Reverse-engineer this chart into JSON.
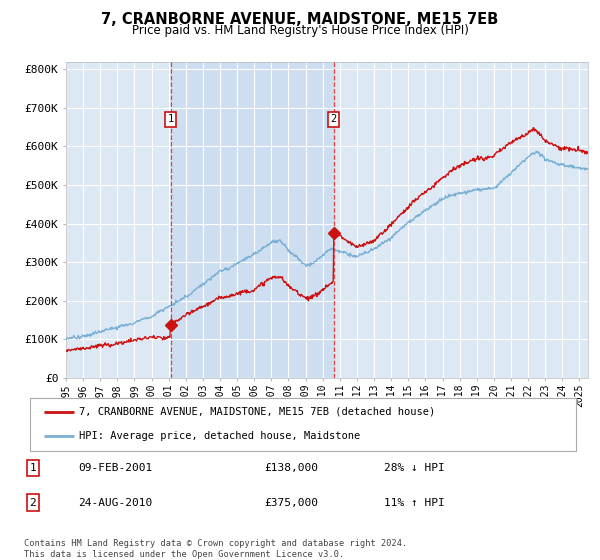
{
  "title": "7, CRANBORNE AVENUE, MAIDSTONE, ME15 7EB",
  "subtitle": "Price paid vs. HM Land Registry's House Price Index (HPI)",
  "ylabel_ticks": [
    "£0",
    "£100K",
    "£200K",
    "£300K",
    "£400K",
    "£500K",
    "£600K",
    "£700K",
    "£800K"
  ],
  "ylim": [
    0,
    820000
  ],
  "xlim_start": 1995.0,
  "xlim_end": 2025.5,
  "background_color": "#ffffff",
  "plot_bg_color": "#dde8f5",
  "grid_color": "#ffffff",
  "hpi_color": "#7ab0d4",
  "price_color": "#cc1111",
  "dashed_color": "#dd4444",
  "shade_color": "#c8daf0",
  "purchase1": {
    "date_x": 2001.11,
    "price": 138000,
    "label": "1",
    "date_str": "09-FEB-2001",
    "price_str": "£138,000",
    "pct_str": "28% ↓ HPI"
  },
  "purchase2": {
    "date_x": 2010.64,
    "price": 375000,
    "label": "2",
    "date_str": "24-AUG-2010",
    "price_str": "£375,000",
    "pct_str": "11% ↑ HPI"
  },
  "legend1_label": "7, CRANBORNE AVENUE, MAIDSTONE, ME15 7EB (detached house)",
  "legend2_label": "HPI: Average price, detached house, Maidstone",
  "footer": "Contains HM Land Registry data © Crown copyright and database right 2024.\nThis data is licensed under the Open Government Licence v3.0.",
  "xtick_years": [
    1995,
    1996,
    1997,
    1998,
    1999,
    2000,
    2001,
    2002,
    2003,
    2004,
    2005,
    2006,
    2007,
    2008,
    2009,
    2010,
    2011,
    2012,
    2013,
    2014,
    2015,
    2016,
    2017,
    2018,
    2019,
    2020,
    2021,
    2022,
    2023,
    2024,
    2025
  ]
}
